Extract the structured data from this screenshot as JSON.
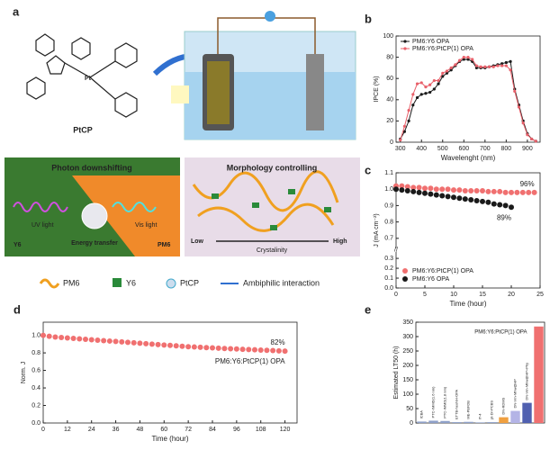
{
  "panel_a": {
    "panel": "a",
    "molecule_label": "PtCP",
    "box1_title": "Photon downshifting",
    "box2_title": "Morphology controlling",
    "uv": "UV light",
    "vis": "Vis light",
    "y6": "Y6",
    "pm6": "PM6",
    "energy": "Energy transfer",
    "low": "Low",
    "axis": "Crystalinity",
    "high": "High",
    "legend": [
      "PM6",
      "Y6",
      "PtCP",
      "Ambiphilic interaction"
    ]
  },
  "chart_data": [
    {
      "type": "line",
      "panel": "b",
      "x_label": "Wavelenght (nm)",
      "y_label": "IPCE (%)",
      "x": [
        300,
        320,
        340,
        360,
        380,
        400,
        420,
        440,
        460,
        480,
        500,
        520,
        540,
        560,
        580,
        600,
        620,
        640,
        660,
        680,
        700,
        720,
        740,
        760,
        780,
        800,
        820,
        840,
        860,
        880,
        900,
        920,
        940
      ],
      "series": [
        {
          "name": "PM6:Y6 OPA",
          "color": "#1a1a1a",
          "values": [
            3,
            10,
            20,
            35,
            42,
            45,
            46,
            47,
            50,
            55,
            62,
            65,
            68,
            72,
            76,
            78,
            78,
            76,
            70,
            70,
            70,
            71,
            72,
            73,
            74,
            75,
            76,
            50,
            35,
            20,
            8,
            3,
            1
          ]
        },
        {
          "name": "PM6:Y6:PtCP(1) OPA",
          "color": "#e8606a",
          "values": [
            2,
            15,
            30,
            45,
            55,
            56,
            52,
            54,
            58,
            58,
            65,
            67,
            70,
            73,
            77,
            80,
            80,
            78,
            72,
            71,
            71,
            71,
            71,
            72,
            72,
            72,
            68,
            48,
            33,
            18,
            7,
            3,
            1
          ]
        }
      ],
      "xlim": [
        280,
        960
      ],
      "xticks": [
        300,
        400,
        500,
        600,
        700,
        800,
        900
      ],
      "ylim": [
        0,
        100
      ],
      "yticks": [
        0,
        20,
        40,
        60,
        80,
        100
      ],
      "legend": "upper left"
    },
    {
      "type": "scatter",
      "panel": "c",
      "x_label": "Time (hour)",
      "y_label": "J (mA cm⁻²)",
      "series": [
        {
          "name": "PM6:Y6:PtCP(1) OPA",
          "color": "#f07070",
          "x": [
            0,
            1,
            2,
            3,
            4,
            5,
            6,
            7,
            8,
            9,
            10,
            11,
            12,
            13,
            14,
            15,
            16,
            17,
            18,
            19,
            20,
            21,
            22,
            23,
            24
          ],
          "values": [
            1.02,
            1.02,
            1.015,
            1.01,
            1.01,
            1.005,
            1.005,
            1.0,
            1.0,
            1.0,
            0.995,
            0.995,
            0.99,
            0.99,
            0.99,
            0.99,
            0.985,
            0.985,
            0.985,
            0.98,
            0.98,
            0.98,
            0.98,
            0.98,
            0.98
          ]
        },
        {
          "name": "PM6:Y6 OPA",
          "color": "#1a1a1a",
          "x": [
            0,
            1,
            2,
            3,
            4,
            5,
            6,
            7,
            8,
            9,
            10,
            11,
            12,
            13,
            14,
            15,
            16,
            17,
            18,
            19,
            20
          ],
          "values": [
            1.0,
            0.995,
            0.99,
            0.985,
            0.98,
            0.975,
            0.97,
            0.965,
            0.96,
            0.955,
            0.95,
            0.945,
            0.94,
            0.935,
            0.93,
            0.925,
            0.92,
            0.91,
            0.905,
            0.9,
            0.89
          ]
        }
      ],
      "annotations": [
        "96%",
        "89%"
      ],
      "xlim": [
        0,
        25
      ],
      "xticks": [
        0,
        5,
        10,
        15,
        20,
        25
      ],
      "ylim": [
        0,
        1.1
      ],
      "y_break": [
        0.35,
        0.65
      ],
      "yticks": [
        {
          "value": 0,
          "label": "0.0"
        },
        0.1,
        0.2,
        0.3,
        0.7,
        0.8,
        0.9,
        {
          "value": 1,
          "label": "1.0"
        },
        1.1
      ],
      "legend": "lower left"
    },
    {
      "type": "scatter",
      "panel": "d",
      "x_label": "Time (hour)",
      "y_label": "Norm. J",
      "series": [
        {
          "name": "PM6:Y6:PtCP(1) OPA",
          "color": "#f07070",
          "x": [
            0,
            3,
            6,
            9,
            12,
            15,
            18,
            21,
            24,
            27,
            30,
            33,
            36,
            39,
            42,
            45,
            48,
            51,
            54,
            57,
            60,
            63,
            66,
            69,
            72,
            75,
            78,
            81,
            84,
            87,
            90,
            93,
            96,
            99,
            102,
            105,
            108,
            111,
            114,
            117,
            120
          ],
          "values": [
            1.0,
            0.99,
            0.98,
            0.975,
            0.97,
            0.965,
            0.96,
            0.955,
            0.95,
            0.945,
            0.94,
            0.935,
            0.93,
            0.925,
            0.92,
            0.915,
            0.91,
            0.905,
            0.9,
            0.895,
            0.89,
            0.885,
            0.88,
            0.875,
            0.87,
            0.867,
            0.864,
            0.86,
            0.857,
            0.854,
            0.85,
            0.847,
            0.844,
            0.841,
            0.838,
            0.835,
            0.832,
            0.829,
            0.826,
            0.823,
            0.82
          ]
        }
      ],
      "annotations": [
        "82%"
      ],
      "xlim": [
        0,
        126
      ],
      "xticks": [
        0,
        12,
        24,
        36,
        48,
        60,
        72,
        84,
        96,
        108,
        120
      ],
      "ylim": [
        0,
        1.15
      ],
      "yticks": [
        {
          "value": 0,
          "label": "0.0"
        },
        0.2,
        0.4,
        0.6,
        0.8,
        {
          "value": 1,
          "label": "1.0"
        }
      ],
      "legend": "inline"
    },
    {
      "type": "bar",
      "panel": "e",
      "y_label": "Estimated LT50 (h)",
      "categories": [
        "ICBA",
        "PTC-IMMD(1.6 nm)",
        "PTC-IMMD(1.8 nm)",
        "ETTB-hexNH-OPA",
        "ME-PBFDB",
        "IT-4",
        "pt-Dr-PCBS",
        "DN-RDMS",
        "DN-Vm-Mhw@HP",
        "DN-Vm-Mhw@HP+Phy",
        "PM6:Y6:PtCP(1) OPA"
      ],
      "values": [
        5,
        8,
        7,
        3,
        4,
        2,
        3,
        20,
        42,
        70,
        335
      ],
      "colors": [
        "#8ea0c8",
        "#8ea0c8",
        "#8ea0c8",
        "#8ea0c8",
        "#8ea0c8",
        "#8ea0c8",
        "#8ea0c8",
        "#f0a040",
        "#b4b4e6",
        "#5060b0",
        "#f07070"
      ],
      "ylim": [
        0,
        350
      ],
      "yticks": [
        0,
        50,
        100,
        150,
        200,
        250,
        300,
        350
      ]
    }
  ]
}
